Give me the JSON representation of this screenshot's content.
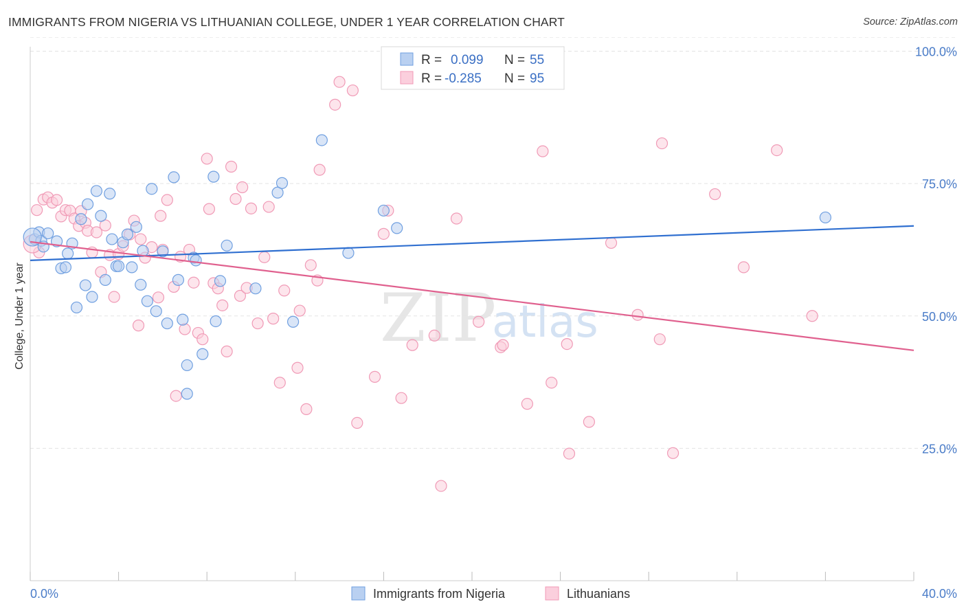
{
  "header": {
    "title": "IMMIGRANTS FROM NIGERIA VS LITHUANIAN COLLEGE, UNDER 1 YEAR CORRELATION CHART",
    "source": "Source: ZipAtlas.com"
  },
  "watermark": {
    "zip": "ZIP",
    "atlas": "atlas"
  },
  "legend": {
    "r_label": "R =",
    "n_label": "N =",
    "series1": {
      "r": "0.099",
      "n": "55"
    },
    "series2": {
      "r": "-0.285",
      "n": "95"
    }
  },
  "chart_data": {
    "type": "scatter",
    "title": "IMMIGRANTS FROM NIGERIA VS LITHUANIAN COLLEGE, UNDER 1 YEAR CORRELATION CHART",
    "xlabel": "",
    "ylabel": "College, Under 1 year",
    "xlim": [
      0,
      40
    ],
    "ylim": [
      0,
      105
    ],
    "x_tick_labels": [
      "0.0%",
      "40.0%"
    ],
    "y_ticks": [
      25,
      50,
      75,
      100
    ],
    "y_tick_labels": [
      "25.0%",
      "50.0%",
      "75.0%",
      "100.0%"
    ],
    "grid": true,
    "legend_position": "top-center",
    "series": [
      {
        "name": "Immigrants from Nigeria",
        "color": "#6f9fe0",
        "fill": "#b9d0f1",
        "line_color": "#2f6fd0",
        "trend": {
          "x": [
            0,
            40
          ],
          "y": [
            60.5,
            67.0
          ]
        },
        "points": [
          [
            0.2,
            64.5
          ],
          [
            0.4,
            65.8
          ],
          [
            0.5,
            64.2
          ],
          [
            0.6,
            63.1
          ],
          [
            0.8,
            65.6
          ],
          [
            1.2,
            64.1
          ],
          [
            1.4,
            59.0
          ],
          [
            1.6,
            59.2
          ],
          [
            1.7,
            61.8
          ],
          [
            1.9,
            63.7
          ],
          [
            2.1,
            51.6
          ],
          [
            2.3,
            68.3
          ],
          [
            2.5,
            55.8
          ],
          [
            2.6,
            71.1
          ],
          [
            2.8,
            53.6
          ],
          [
            3.0,
            73.6
          ],
          [
            3.2,
            68.9
          ],
          [
            3.4,
            56.8
          ],
          [
            3.6,
            73.1
          ],
          [
            3.7,
            64.5
          ],
          [
            3.9,
            59.4
          ],
          [
            4.0,
            59.4
          ],
          [
            4.2,
            63.9
          ],
          [
            4.4,
            65.4
          ],
          [
            4.6,
            59.2
          ],
          [
            4.8,
            66.8
          ],
          [
            5.0,
            55.9
          ],
          [
            5.1,
            62.3
          ],
          [
            5.3,
            52.8
          ],
          [
            5.5,
            74.0
          ],
          [
            5.7,
            50.9
          ],
          [
            6.0,
            62.2
          ],
          [
            6.2,
            48.6
          ],
          [
            6.5,
            76.2
          ],
          [
            6.7,
            56.8
          ],
          [
            6.9,
            49.3
          ],
          [
            7.1,
            40.7
          ],
          [
            7.1,
            35.3
          ],
          [
            7.4,
            61.0
          ],
          [
            7.5,
            60.5
          ],
          [
            7.8,
            42.8
          ],
          [
            8.3,
            76.3
          ],
          [
            8.4,
            49.0
          ],
          [
            8.6,
            56.6
          ],
          [
            8.9,
            63.3
          ],
          [
            10.2,
            55.2
          ],
          [
            11.2,
            73.3
          ],
          [
            11.4,
            75.1
          ],
          [
            11.9,
            48.9
          ],
          [
            13.2,
            83.2
          ],
          [
            14.4,
            61.9
          ],
          [
            16.0,
            69.9
          ],
          [
            16.6,
            66.6
          ],
          [
            36.0,
            68.6
          ],
          [
            0.1,
            64.9
          ]
        ]
      },
      {
        "name": "Lithuanians",
        "color": "#f09ab6",
        "fill": "#fbcfdd",
        "line_color": "#e0608e",
        "trend": {
          "x": [
            0,
            40
          ],
          "y": [
            64.0,
            43.5
          ]
        },
        "points": [
          [
            0.3,
            70.0
          ],
          [
            0.4,
            62.0
          ],
          [
            0.6,
            72.0
          ],
          [
            0.8,
            72.4
          ],
          [
            1.0,
            71.4
          ],
          [
            1.2,
            71.9
          ],
          [
            1.4,
            68.8
          ],
          [
            1.6,
            70.0
          ],
          [
            1.8,
            69.9
          ],
          [
            2.0,
            68.4
          ],
          [
            2.2,
            67.0
          ],
          [
            2.3,
            69.8
          ],
          [
            2.5,
            67.6
          ],
          [
            2.6,
            66.1
          ],
          [
            2.8,
            62.0
          ],
          [
            3.0,
            65.8
          ],
          [
            3.2,
            58.3
          ],
          [
            3.4,
            67.1
          ],
          [
            3.6,
            61.5
          ],
          [
            3.8,
            53.6
          ],
          [
            4.0,
            61.7
          ],
          [
            4.2,
            63.2
          ],
          [
            4.5,
            65.4
          ],
          [
            4.7,
            68.0
          ],
          [
            4.9,
            48.2
          ],
          [
            5.0,
            64.5
          ],
          [
            5.2,
            61.0
          ],
          [
            5.5,
            63.0
          ],
          [
            5.8,
            53.5
          ],
          [
            5.9,
            68.9
          ],
          [
            6.0,
            62.5
          ],
          [
            6.2,
            71.9
          ],
          [
            6.5,
            55.5
          ],
          [
            6.6,
            34.9
          ],
          [
            6.8,
            61.2
          ],
          [
            7.0,
            47.5
          ],
          [
            7.2,
            62.5
          ],
          [
            7.4,
            56.3
          ],
          [
            7.6,
            46.8
          ],
          [
            7.8,
            45.6
          ],
          [
            8.0,
            79.7
          ],
          [
            8.1,
            70.2
          ],
          [
            8.3,
            56.2
          ],
          [
            8.5,
            55.2
          ],
          [
            8.7,
            52.0
          ],
          [
            8.9,
            43.3
          ],
          [
            9.1,
            78.2
          ],
          [
            9.3,
            72.1
          ],
          [
            9.5,
            53.8
          ],
          [
            9.6,
            74.3
          ],
          [
            9.8,
            55.3
          ],
          [
            10.0,
            70.3
          ],
          [
            10.3,
            48.6
          ],
          [
            10.6,
            61.1
          ],
          [
            10.8,
            70.6
          ],
          [
            11.0,
            49.5
          ],
          [
            11.3,
            37.4
          ],
          [
            11.5,
            54.8
          ],
          [
            12.1,
            40.2
          ],
          [
            12.2,
            51.0
          ],
          [
            12.5,
            32.4
          ],
          [
            12.7,
            59.6
          ],
          [
            13.0,
            56.7
          ],
          [
            13.1,
            77.6
          ],
          [
            14.0,
            94.2
          ],
          [
            13.8,
            89.9
          ],
          [
            14.6,
            92.6
          ],
          [
            14.8,
            29.8
          ],
          [
            15.6,
            38.5
          ],
          [
            16.0,
            65.5
          ],
          [
            16.2,
            69.9
          ],
          [
            16.8,
            34.5
          ],
          [
            17.3,
            44.5
          ],
          [
            18.3,
            46.3
          ],
          [
            18.6,
            17.9
          ],
          [
            19.3,
            68.4
          ],
          [
            20.3,
            48.9
          ],
          [
            21.3,
            44.1
          ],
          [
            21.4,
            44.5
          ],
          [
            22.5,
            33.4
          ],
          [
            23.2,
            81.1
          ],
          [
            23.6,
            37.4
          ],
          [
            24.3,
            44.7
          ],
          [
            24.4,
            24.0
          ],
          [
            25.3,
            30.0
          ],
          [
            26.3,
            63.8
          ],
          [
            27.5,
            50.2
          ],
          [
            28.5,
            45.6
          ],
          [
            28.6,
            82.6
          ],
          [
            29.1,
            24.1
          ],
          [
            31.0,
            73.0
          ],
          [
            32.3,
            59.2
          ],
          [
            33.8,
            81.3
          ],
          [
            35.4,
            50.0
          ],
          [
            0.1,
            63.6
          ]
        ]
      }
    ]
  },
  "bottom_legend": {
    "series1_label": "Immigrants from Nigeria",
    "series2_label": "Lithuanians"
  }
}
